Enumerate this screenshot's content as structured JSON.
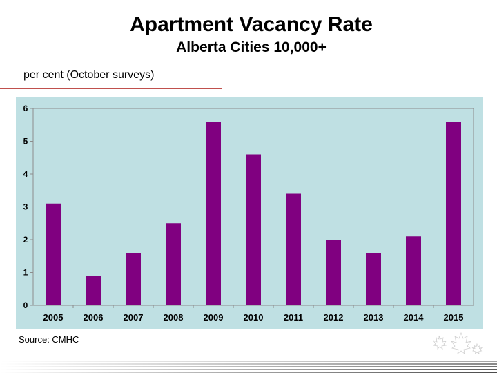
{
  "header": {
    "title": "Apartment Vacancy Rate",
    "subtitle": "Alberta Cities 10,000+",
    "units": "per cent (October surveys)"
  },
  "footer": {
    "source": "Source:  CMHC"
  },
  "colors": {
    "plot_background": "#bfe0e3",
    "bar": "#800080",
    "accent_rule": "#c0504d"
  },
  "chart_data": {
    "type": "bar",
    "title": "",
    "xlabel": "",
    "ylabel": "",
    "categories": [
      "2005",
      "2006",
      "2007",
      "2008",
      "2009",
      "2010",
      "2011",
      "2012",
      "2013",
      "2014",
      "2015"
    ],
    "values": [
      3.1,
      0.9,
      1.6,
      2.5,
      5.6,
      4.6,
      3.4,
      2.0,
      1.6,
      2.1,
      5.6
    ],
    "ylim": [
      0,
      6
    ],
    "yticks": [
      "0",
      "1",
      "2",
      "3",
      "4",
      "5",
      "6"
    ],
    "grid": false,
    "legend": "none"
  }
}
